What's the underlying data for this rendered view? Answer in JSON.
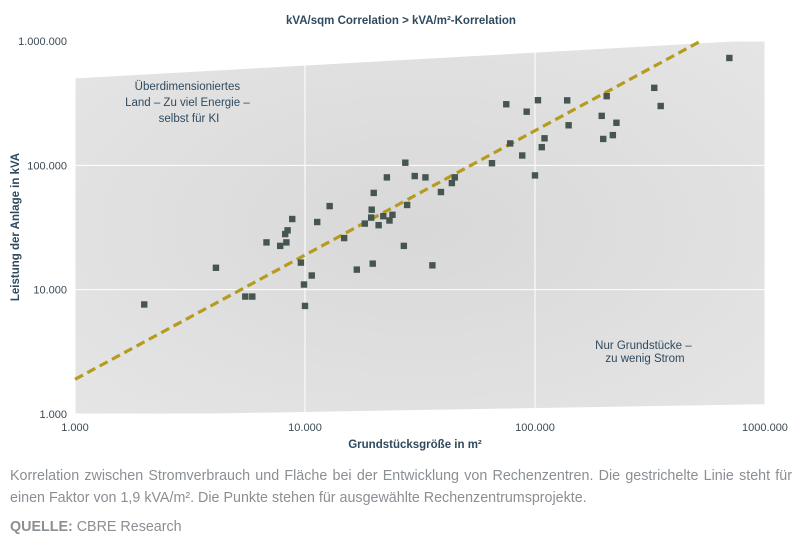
{
  "chart_data": {
    "type": "scatter",
    "title": "kVA/sqm Correlation > kVA/m²-Korrelation",
    "xlabel": "Grundstücksgröße in m²",
    "ylabel": "Leistung der Anlage in kVA",
    "x_scale": "log",
    "y_scale": "log",
    "xlim": [
      1000,
      1000000
    ],
    "ylim": [
      1000,
      1000000
    ],
    "x_ticks": [
      {
        "value": 1000,
        "label": "1.000"
      },
      {
        "value": 10000,
        "label": "10.000"
      },
      {
        "value": 100000,
        "label": "100.000"
      },
      {
        "value": 1000000,
        "label": "1000.000"
      }
    ],
    "y_ticks": [
      {
        "value": 1000,
        "label": "1.000"
      },
      {
        "value": 10000,
        "label": "10.000"
      },
      {
        "value": 100000,
        "label": "100.000"
      },
      {
        "value": 1000000,
        "label": "1.000.000"
      }
    ],
    "trend_line": {
      "style": "dashed",
      "factor": 1.9,
      "color": "#b59b1f"
    },
    "annotations": {
      "upper_left": [
        "Überdimensioniertes",
        "Land – Zu viel Energie –",
        "selbst für KI"
      ],
      "lower_right": [
        "Nur Grundstücke –",
        "zu wenig Strom"
      ]
    },
    "series": [
      {
        "name": "Rechenzentrumsprojekte",
        "color": "#46564f",
        "points": [
          [
            2000,
            7600
          ],
          [
            4100,
            15000
          ],
          [
            5500,
            8800
          ],
          [
            5900,
            8800
          ],
          [
            6800,
            24000
          ],
          [
            7800,
            22500
          ],
          [
            8200,
            28000
          ],
          [
            8300,
            24000
          ],
          [
            8400,
            30000
          ],
          [
            8800,
            37000
          ],
          [
            9600,
            16500
          ],
          [
            9900,
            11000
          ],
          [
            10000,
            7400
          ],
          [
            10700,
            13000
          ],
          [
            11300,
            35000
          ],
          [
            12800,
            47000
          ],
          [
            14800,
            26000
          ],
          [
            16800,
            14500
          ],
          [
            18200,
            34000
          ],
          [
            19400,
            38000
          ],
          [
            19500,
            44000
          ],
          [
            19700,
            16200
          ],
          [
            19900,
            60000
          ],
          [
            20900,
            33000
          ],
          [
            21900,
            39000
          ],
          [
            22700,
            80000
          ],
          [
            23300,
            36000
          ],
          [
            24000,
            40000
          ],
          [
            26900,
            22500
          ],
          [
            27300,
            105000
          ],
          [
            27800,
            48000
          ],
          [
            30000,
            82000
          ],
          [
            33400,
            80000
          ],
          [
            35800,
            15700
          ],
          [
            39000,
            61000
          ],
          [
            43500,
            72000
          ],
          [
            44800,
            80000
          ],
          [
            65000,
            104000
          ],
          [
            75000,
            310000
          ],
          [
            78000,
            150000
          ],
          [
            88000,
            120000
          ],
          [
            92000,
            270000
          ],
          [
            100000,
            83000
          ],
          [
            103000,
            334000
          ],
          [
            107000,
            140000
          ],
          [
            110000,
            165000
          ],
          [
            138000,
            333000
          ],
          [
            140000,
            210000
          ],
          [
            195000,
            250000
          ],
          [
            198000,
            163000
          ],
          [
            205000,
            360000
          ],
          [
            218000,
            175000
          ],
          [
            226000,
            220000
          ],
          [
            330000,
            420000
          ],
          [
            352000,
            300000
          ],
          [
            700000,
            730000
          ]
        ]
      }
    ]
  },
  "caption": "Korrelation zwischen Stromverbrauch und Fläche bei der Entwicklung von Rechenzentren. Die gestrichelte Linie steht für einen Faktor von 1,9 kVA/m². Die Punkte stehen für ausgewählte Rechenzentrumsprojekte.",
  "source": {
    "label": "QUELLE:",
    "text": " CBRE Research"
  }
}
